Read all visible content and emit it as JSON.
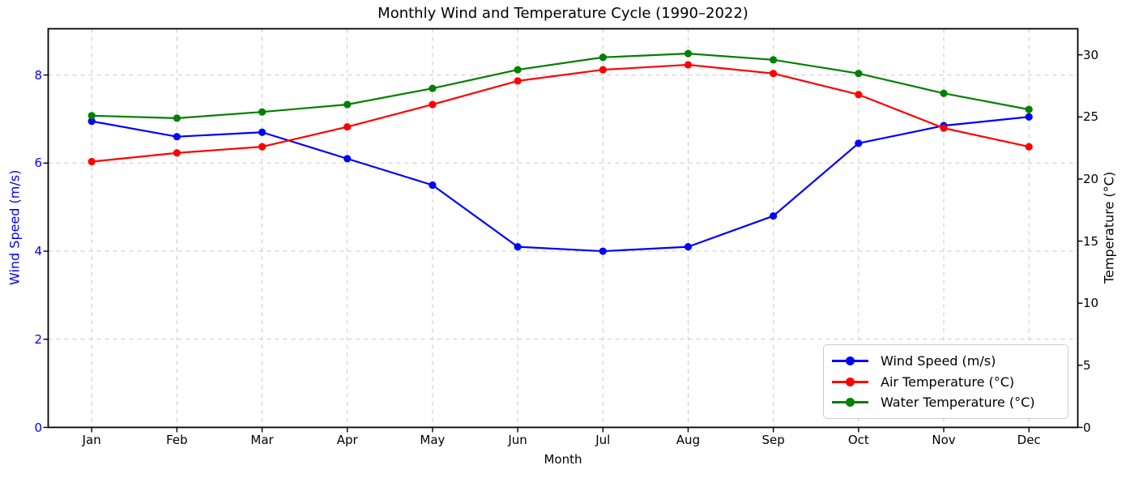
{
  "chart_data": {
    "type": "line",
    "title": "Monthly Wind and Temperature Cycle (1990–2022)",
    "xlabel": "Month",
    "ylabel_left": "Wind Speed (m/s)",
    "ylabel_right": "Temperature (°C)",
    "categories": [
      "Jan",
      "Feb",
      "Mar",
      "Apr",
      "May",
      "Jun",
      "Jul",
      "Aug",
      "Sep",
      "Oct",
      "Nov",
      "Dec"
    ],
    "left_axis": {
      "ticks": [
        0,
        2,
        4,
        6,
        8
      ],
      "range": [
        0,
        9.05
      ],
      "label_color": "#0000ff"
    },
    "right_axis": {
      "ticks": [
        0,
        5,
        10,
        15,
        20,
        25,
        30
      ],
      "range": [
        0,
        32.1
      ],
      "label_color": "#000000"
    },
    "grid": {
      "visible": true,
      "style": "dashed",
      "color": "#c8c8c8"
    },
    "legend_position": "lower right",
    "series": [
      {
        "name": "Wind Speed (m/s)",
        "axis": "left",
        "color": "#0000ff",
        "marker": "circle",
        "values": [
          6.95,
          6.6,
          6.7,
          6.1,
          5.5,
          4.1,
          4.0,
          4.1,
          4.8,
          6.45,
          6.85,
          7.05
        ]
      },
      {
        "name": "Air Temperature (°C)",
        "axis": "right",
        "color": "#ff0000",
        "marker": "circle",
        "values": [
          21.4,
          22.1,
          22.6,
          24.2,
          26.0,
          27.9,
          28.8,
          29.2,
          28.5,
          26.8,
          24.1,
          22.6
        ]
      },
      {
        "name": "Water Temperature (°C)",
        "axis": "right",
        "color": "#008000",
        "marker": "circle",
        "values": [
          25.1,
          24.9,
          25.4,
          26.0,
          27.3,
          28.8,
          29.8,
          30.1,
          29.6,
          28.5,
          26.9,
          25.6
        ]
      }
    ]
  }
}
